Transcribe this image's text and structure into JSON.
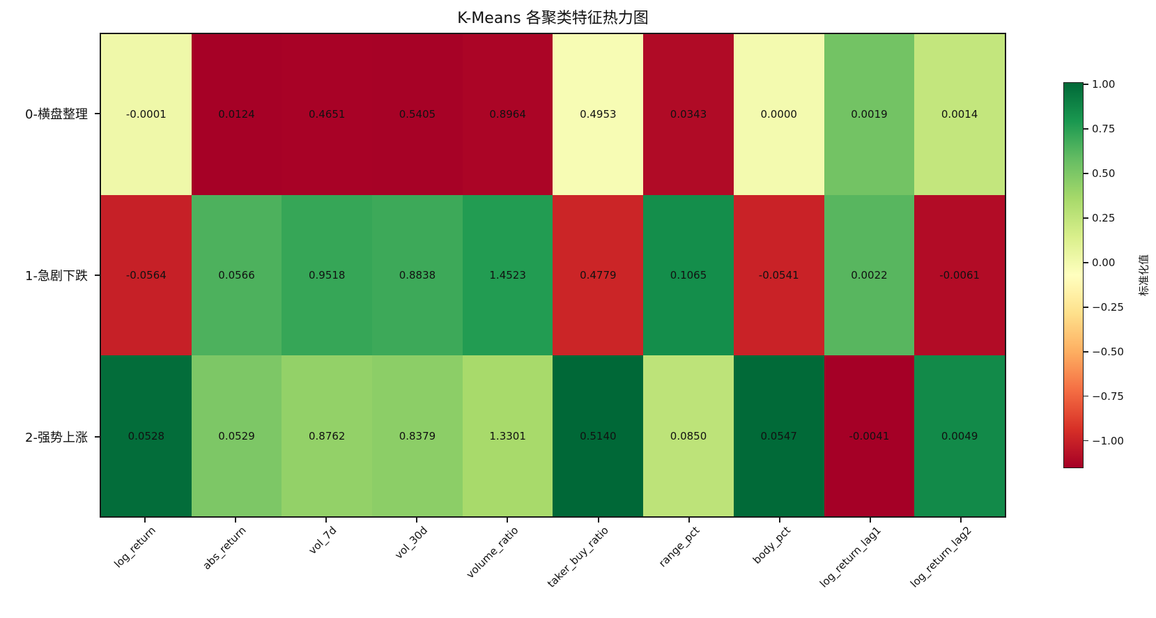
{
  "title": "K-Means 各聚类特征热力图",
  "chart_data": {
    "type": "heatmap",
    "title": "K-Means 各聚类特征热力图",
    "rows": [
      "0-横盘整理",
      "1-急剧下跌",
      "2-强势上涨"
    ],
    "columns": [
      "log_return",
      "abs_return",
      "vol_7d",
      "vol_30d",
      "volume_ratio",
      "taker_buy_ratio",
      "range_pct",
      "body_pct",
      "log_return_lag1",
      "log_return_lag2"
    ],
    "values": [
      [
        "-0.0001",
        "0.0124",
        "0.4651",
        "0.5405",
        "0.8964",
        "0.4953",
        "0.0343",
        "0.0000",
        "0.0019",
        "0.0014"
      ],
      [
        "-0.0564",
        "0.0566",
        "0.9518",
        "0.8838",
        "1.4523",
        "0.4779",
        "0.1065",
        "-0.0541",
        "0.0022",
        "-0.0061"
      ],
      [
        "0.0528",
        "0.0529",
        "0.8762",
        "0.8379",
        "1.3301",
        "0.5140",
        "0.0850",
        "0.0547",
        "-0.0041",
        "0.0049"
      ]
    ],
    "color_encoding": "column-wise z-score (ddof=1) of cell values, RdYlGn colormap, vmin/vmax = global min/max of z-scores",
    "colormap_name": "RdYlGn",
    "colorbar": {
      "label": "标准化值",
      "tick_values": [
        1.0,
        0.75,
        0.5,
        0.25,
        0.0,
        -0.25,
        -0.5,
        -0.75,
        -1.0
      ],
      "tick_labels": [
        "1.00",
        "0.75",
        "0.50",
        "0.25",
        "0.00",
        "−0.25",
        "−0.50",
        "−0.75",
        "−1.00"
      ]
    },
    "legend_position": "right",
    "grid": false
  },
  "colors": {
    "background": "#ffffff",
    "axes_edge": "#1a1a1a",
    "cell_text": "#111111",
    "cmap_anchors": [
      "#a50026",
      "#d73027",
      "#f46d43",
      "#fdae61",
      "#fee08b",
      "#ffffbf",
      "#d9ef8b",
      "#a6d96a",
      "#66bd63",
      "#1a9850",
      "#006837"
    ]
  }
}
